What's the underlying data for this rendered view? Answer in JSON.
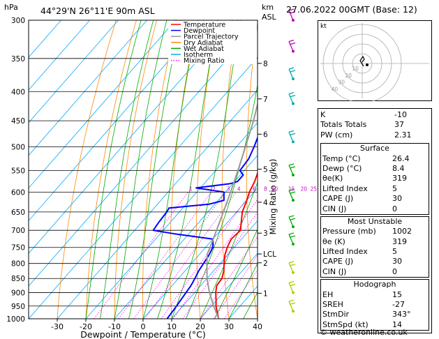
{
  "header": {
    "location": "44°29'N  26°11'E  90m  ASL",
    "datetime": "27.06.2022  00GMT  (Base: 12)",
    "unit_left": "hPa",
    "unit_right_top": "km",
    "unit_right_bottom": "ASL"
  },
  "credit": "© weatheronline.co.uk",
  "chart_data": {
    "type": "line",
    "title": "",
    "xlabel": "Dewpoint / Temperature (°C)",
    "ylabel": "hPa",
    "right_axis_label": "Mixing Ratio (g/kg)",
    "xlim": [
      -40,
      40
    ],
    "ylim": [
      1000,
      300
    ],
    "y_scale": "log",
    "x_ticks": [
      -30,
      -20,
      -10,
      0,
      10,
      20,
      30,
      40
    ],
    "pressure_levels": [
      300,
      350,
      400,
      450,
      500,
      550,
      600,
      650,
      700,
      750,
      800,
      850,
      900,
      950,
      1000
    ],
    "height_ticks": [
      {
        "label": "8",
        "p": 357
      },
      {
        "label": "7",
        "p": 412
      },
      {
        "label": "6",
        "p": 475
      },
      {
        "label": "5",
        "p": 547
      },
      {
        "label": "4",
        "p": 625
      },
      {
        "label": "3",
        "p": 708
      },
      {
        "label": "LCL",
        "p": 770
      },
      {
        "label": "2",
        "p": 798
      },
      {
        "label": "1",
        "p": 902
      }
    ],
    "mixing_ratio_labels": [
      "1",
      "2",
      "3",
      "4",
      "6",
      "8",
      "10",
      "15",
      "20",
      "25"
    ],
    "legend": [
      {
        "name": "Temperature",
        "color": "#ff0000"
      },
      {
        "name": "Dewpoint",
        "color": "#0000ff"
      },
      {
        "name": "Parcel Trajectory",
        "color": "#999999"
      },
      {
        "name": "Dry Adiabat",
        "color": "#ff8800"
      },
      {
        "name": "Wet Adiabat",
        "color": "#00aa00"
      },
      {
        "name": "Isotherm",
        "color": "#00aaff"
      },
      {
        "name": "Mixing Ratio",
        "color": "#ff00ff"
      }
    ],
    "grid": true,
    "series": [
      {
        "name": "Temperature",
        "color": "#ff0000",
        "points": [
          [
            1000,
            26.4
          ],
          [
            975,
            24.0
          ],
          [
            950,
            21.6
          ],
          [
            925,
            19.6
          ],
          [
            900,
            17.4
          ],
          [
            875,
            15.6
          ],
          [
            850,
            15.2
          ],
          [
            825,
            13.6
          ],
          [
            800,
            11.4
          ],
          [
            775,
            9.2
          ],
          [
            750,
            7.6
          ],
          [
            725,
            6.4
          ],
          [
            700,
            7.0
          ],
          [
            680,
            5.0
          ],
          [
            650,
            2.0
          ],
          [
            620,
            0.0
          ],
          [
            600,
            -1.6
          ],
          [
            575,
            -3.0
          ],
          [
            550,
            -5.0
          ],
          [
            525,
            -7.8
          ],
          [
            500,
            -10.2
          ],
          [
            475,
            -13.2
          ],
          [
            450,
            -16.0
          ],
          [
            425,
            -19.0
          ],
          [
            400,
            -22.0
          ],
          [
            375,
            -26.0
          ],
          [
            350,
            -30.4
          ],
          [
            325,
            -35.2
          ],
          [
            300,
            -40.5
          ]
        ]
      },
      {
        "name": "Dewpoint",
        "color": "#0000ff",
        "points": [
          [
            1000,
            8.4
          ],
          [
            950,
            7.8
          ],
          [
            900,
            7.0
          ],
          [
            875,
            6.6
          ],
          [
            850,
            5.8
          ],
          [
            825,
            4.8
          ],
          [
            800,
            4.2
          ],
          [
            775,
            3.6
          ],
          [
            750,
            2.6
          ],
          [
            725,
            0.0
          ],
          [
            710,
            -15.0
          ],
          [
            700,
            -23.5
          ],
          [
            680,
            -24.0
          ],
          [
            650,
            -24.4
          ],
          [
            640,
            -24.8
          ],
          [
            630,
            -12.0
          ],
          [
            620,
            -8.0
          ],
          [
            600,
            -10.5
          ],
          [
            590,
            -21.5
          ],
          [
            580,
            -11.0
          ],
          [
            575,
            -9.0
          ],
          [
            560,
            -9.0
          ],
          [
            550,
            -11.5
          ],
          [
            525,
            -12.0
          ],
          [
            500,
            -13.8
          ],
          [
            475,
            -16.0
          ],
          [
            450,
            -19.0
          ],
          [
            425,
            -23.0
          ],
          [
            400,
            -26.5
          ],
          [
            375,
            -27.0
          ],
          [
            350,
            -31.0
          ],
          [
            325,
            -36.5
          ],
          [
            300,
            -42.0
          ]
        ]
      },
      {
        "name": "Parcel Trajectory",
        "color": "#999999",
        "points": [
          [
            1000,
            26.4
          ],
          [
            950,
            20.8
          ],
          [
            900,
            15.2
          ],
          [
            850,
            10.0
          ],
          [
            800,
            5.4
          ],
          [
            770,
            2.6
          ],
          [
            750,
            1.6
          ],
          [
            700,
            -1.4
          ],
          [
            650,
            -4.6
          ],
          [
            600,
            -8.2
          ],
          [
            550,
            -12.2
          ],
          [
            500,
            -16.8
          ],
          [
            450,
            -22.0
          ],
          [
            400,
            -28.4
          ],
          [
            350,
            -36.0
          ],
          [
            300,
            -45.2
          ]
        ]
      }
    ],
    "wind_barbs": [
      {
        "p": 300,
        "color": "#bb00bb"
      },
      {
        "p": 340,
        "color": "#bb00bb"
      },
      {
        "p": 380,
        "color": "#00aaaa"
      },
      {
        "p": 420,
        "color": "#00aaaa"
      },
      {
        "p": 490,
        "color": "#00aaaa"
      },
      {
        "p": 560,
        "color": "#00aa00"
      },
      {
        "p": 620,
        "color": "#00aa00"
      },
      {
        "p": 690,
        "color": "#00aa00"
      },
      {
        "p": 740,
        "color": "#00aa00"
      },
      {
        "p": 830,
        "color": "#aacc00"
      },
      {
        "p": 900,
        "color": "#aacc00"
      },
      {
        "p": 970,
        "color": "#aacc00"
      }
    ]
  },
  "hodograph": {
    "unit": "kt",
    "ring_labels": [
      "10",
      "20",
      "30",
      "40"
    ]
  },
  "indices": {
    "top": [
      {
        "label": "K",
        "value": "-10"
      },
      {
        "label": "Totals Totals",
        "value": "37"
      },
      {
        "label": "PW (cm)",
        "value": "2.31"
      }
    ],
    "surface": {
      "title": "Surface",
      "rows": [
        {
          "label": "Temp (°C)",
          "value": "26.4"
        },
        {
          "label": "Dewp (°C)",
          "value": "8.4"
        },
        {
          "label": "θe(K)",
          "value": "319"
        },
        {
          "label": "Lifted Index",
          "value": "5"
        },
        {
          "label": "CAPE (J)",
          "value": "30"
        },
        {
          "label": "CIN (J)",
          "value": "0"
        }
      ]
    },
    "most_unstable": {
      "title": "Most Unstable",
      "rows": [
        {
          "label": "Pressure (mb)",
          "value": "1002"
        },
        {
          "label": "θe (K)",
          "value": "319"
        },
        {
          "label": "Lifted Index",
          "value": "5"
        },
        {
          "label": "CAPE (J)",
          "value": "30"
        },
        {
          "label": "CIN (J)",
          "value": "0"
        }
      ]
    },
    "hodograph": {
      "title": "Hodograph",
      "rows": [
        {
          "label": "EH",
          "value": "15"
        },
        {
          "label": "SREH",
          "value": "-27"
        },
        {
          "label": "StmDir",
          "value": "343°"
        },
        {
          "label": "StmSpd (kt)",
          "value": "14"
        }
      ]
    }
  }
}
